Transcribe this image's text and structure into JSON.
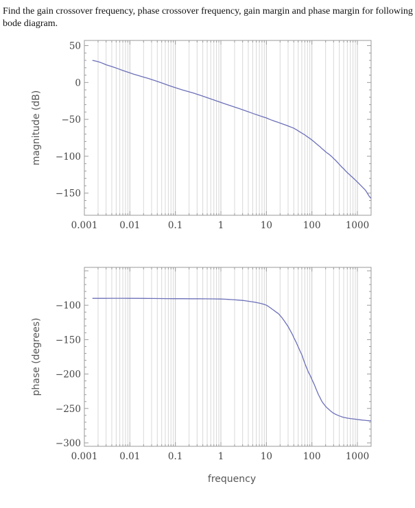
{
  "question": "Find the gain crossover frequency, phase crossover frequency, gain margin and phase margin for following bode diagram.",
  "colors": {
    "curve": "#6b6fb8",
    "grid": "#d8d8d8",
    "frame": "#9a9a9a",
    "text": "#444444"
  },
  "chart_data": [
    {
      "type": "line",
      "title": "",
      "xlabel": "",
      "ylabel": "magnitude (dB)",
      "x_scale": "log",
      "xlim": [
        0.001,
        2000
      ],
      "ylim": [
        -180,
        57
      ],
      "x_ticks": [
        0.001,
        0.01,
        0.1,
        1,
        10,
        100,
        1000
      ],
      "x_tick_labels": [
        "0.001",
        "0.01",
        "0.1",
        "1",
        "10",
        "100",
        "1000"
      ],
      "y_ticks": [
        50,
        0,
        -50,
        -100,
        -150
      ],
      "y_tick_labels": [
        "50",
        "0",
        "-50",
        "-100",
        "-150"
      ],
      "grid": true,
      "series": [
        {
          "x": [
            0.0015,
            0.003,
            0.01,
            0.03,
            0.1,
            0.3,
            1,
            3,
            10,
            20,
            40,
            70,
            100,
            150,
            200,
            300,
            500,
            700,
            1000,
            1500,
            2000
          ],
          "y": [
            30,
            24,
            13,
            4,
            -7,
            -16,
            -27,
            -37,
            -48,
            -55,
            -62,
            -71,
            -78,
            -87,
            -94,
            -103,
            -117,
            -126,
            -135,
            -146,
            -157
          ]
        }
      ]
    },
    {
      "type": "line",
      "title": "",
      "xlabel": "frequency",
      "ylabel": "phase (degrees)",
      "x_scale": "log",
      "xlim": [
        0.001,
        2000
      ],
      "ylim": [
        -305,
        -45
      ],
      "x_ticks": [
        0.001,
        0.01,
        0.1,
        1,
        10,
        100,
        1000
      ],
      "x_tick_labels": [
        "0.001",
        "0.01",
        "0.1",
        "1",
        "10",
        "100",
        "1000"
      ],
      "y_ticks": [
        -100,
        -150,
        -200,
        -250,
        -300
      ],
      "y_tick_labels": [
        "-100",
        "-150",
        "-200",
        "-250",
        "-300"
      ],
      "grid": true,
      "series": [
        {
          "x": [
            0.0015,
            0.01,
            0.1,
            1,
            3,
            6,
            10,
            15,
            20,
            30,
            40,
            60,
            80,
            100,
            150,
            200,
            300,
            500,
            1000,
            2000
          ],
          "y": [
            -90,
            -90,
            -90.5,
            -91,
            -93,
            -96,
            -100,
            -108,
            -115,
            -131,
            -147,
            -172,
            -194,
            -208,
            -234,
            -247,
            -257,
            -263,
            -266,
            -268
          ]
        }
      ]
    }
  ]
}
